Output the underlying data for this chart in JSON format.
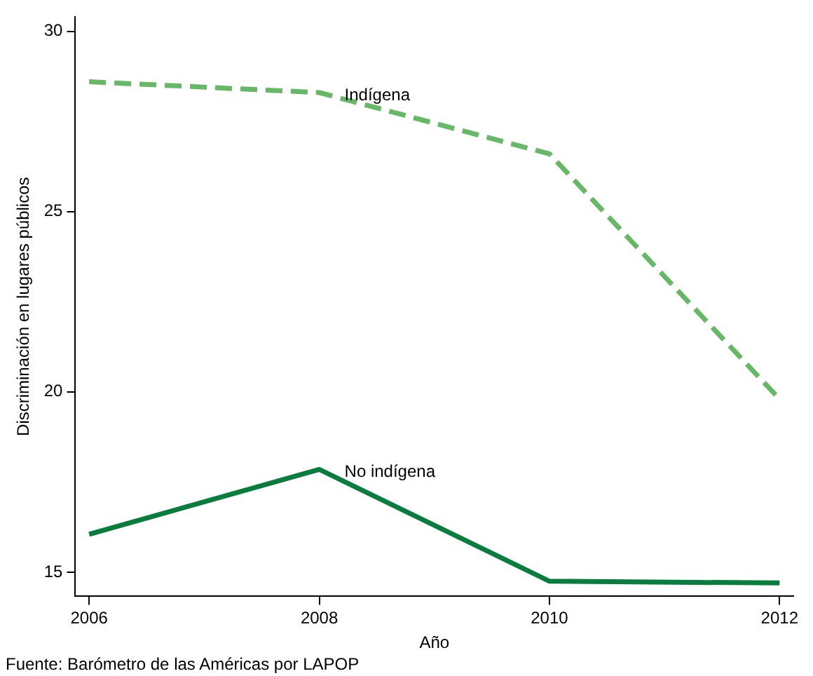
{
  "chart_data": {
    "type": "line",
    "xlabel": "Año",
    "ylabel": "Discriminación en lugares públicos",
    "x": [
      2006,
      2008,
      2010,
      2012
    ],
    "series": [
      {
        "name": "Indígena",
        "color": "#66b866",
        "line_style": "dashed",
        "values": [
          28.6,
          28.3,
          26.6,
          19.8
        ]
      },
      {
        "name": "No indígena",
        "color": "#0a7d3e",
        "line_style": "solid",
        "values": [
          16.05,
          17.85,
          14.75,
          14.7
        ]
      }
    ],
    "xlim": [
      2005.88,
      2012.12
    ],
    "xticks": [
      2006,
      2008,
      2010,
      2012
    ],
    "ylim": [
      14.33,
      30.4
    ],
    "yticks": [
      15,
      20,
      25,
      30
    ],
    "grid": false,
    "legend": false,
    "marker": "none",
    "annotations": [
      "Fuente: Barómetro de las Américas por LAPOP"
    ]
  }
}
